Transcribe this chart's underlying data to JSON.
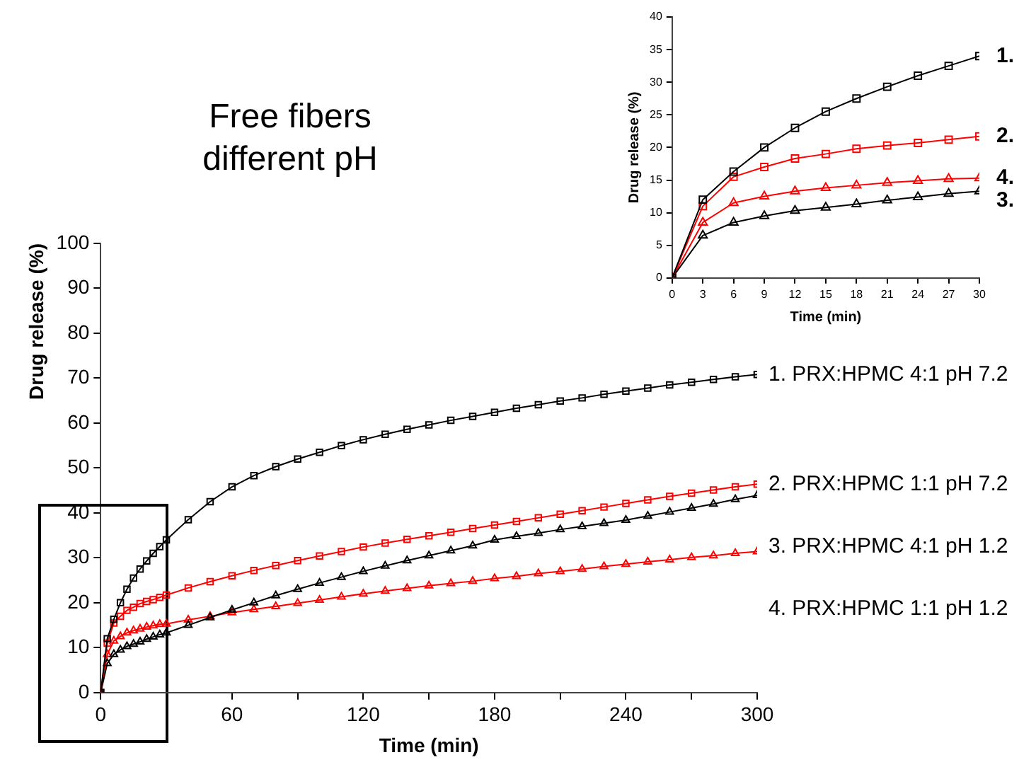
{
  "chart_data": [
    {
      "type": "line",
      "title": "Free fibers different pH",
      "xlabel": "Time (min)",
      "ylabel": "Drug release (%)",
      "x": [
        0,
        3,
        6,
        9,
        12,
        15,
        18,
        21,
        24,
        27,
        30,
        40,
        50,
        60,
        70,
        80,
        90,
        100,
        110,
        120,
        130,
        140,
        150,
        160,
        170,
        180,
        190,
        200,
        210,
        220,
        230,
        240,
        250,
        260,
        270,
        280,
        290,
        300
      ],
      "series": [
        {
          "name": "1. PRX:HPMC 4:1 pH 7.2",
          "color": "#000000",
          "marker": "square",
          "values": [
            0,
            12,
            16.3,
            20,
            23,
            25.5,
            27.5,
            29.3,
            31,
            32.5,
            34,
            38.5,
            42.5,
            45.8,
            48.3,
            50.3,
            52,
            53.5,
            55,
            56.3,
            57.5,
            58.6,
            59.6,
            60.6,
            61.5,
            62.4,
            63.3,
            64.1,
            64.9,
            65.6,
            66.4,
            67.1,
            67.8,
            68.5,
            69.1,
            69.7,
            70.3,
            70.8
          ]
        },
        {
          "name": "2. PRX:HPMC 1:1 pH 7.2",
          "color": "#ff0000",
          "marker": "square",
          "values": [
            0,
            11,
            15.5,
            17,
            18.3,
            19,
            19.8,
            20.3,
            20.7,
            21.2,
            21.7,
            23.3,
            24.7,
            26,
            27.2,
            28.3,
            29.4,
            30.4,
            31.4,
            32.4,
            33.3,
            34.1,
            34.9,
            35.7,
            36.5,
            37.3,
            38.1,
            38.9,
            39.7,
            40.5,
            41.3,
            42.1,
            42.9,
            43.7,
            44.4,
            45.1,
            45.8,
            46.4
          ]
        },
        {
          "name": "3. PRX:HPMC 4:1 pH 1.2",
          "color": "#000000",
          "marker": "triangle",
          "values": [
            0,
            6.5,
            8.5,
            9.5,
            10.3,
            10.8,
            11.3,
            11.9,
            12.4,
            12.9,
            13.3,
            15,
            16.7,
            18.4,
            20,
            21.6,
            23,
            24.4,
            25.7,
            27,
            28.2,
            29.4,
            30.5,
            31.6,
            32.7,
            34,
            34.8,
            35.5,
            36.3,
            37,
            37.7,
            38.4,
            39.3,
            40.2,
            41.1,
            42,
            43,
            43.9
          ]
        },
        {
          "name": "4. PRX:HPMC 1:1 pH 1.2",
          "color": "#ff0000",
          "marker": "triangle",
          "values": [
            0,
            8.5,
            11.5,
            12.5,
            13.3,
            13.8,
            14.2,
            14.6,
            14.9,
            15.2,
            15.3,
            16.2,
            17,
            17.8,
            18.5,
            19.2,
            19.9,
            20.6,
            21.3,
            22,
            22.6,
            23.2,
            23.8,
            24.3,
            24.8,
            25.4,
            25.9,
            26.5,
            27,
            27.5,
            28.1,
            28.6,
            29.1,
            29.6,
            30.1,
            30.5,
            31,
            31.4
          ]
        }
      ],
      "xlim": [
        0,
        300
      ],
      "xticks": [
        0,
        {
          "value": 30,
          "label": null
        },
        60,
        {
          "value": 90,
          "label": null
        },
        120,
        {
          "value": 150,
          "label": null
        },
        180,
        {
          "value": 210,
          "label": null
        },
        240,
        {
          "value": 270,
          "label": null
        },
        300
      ],
      "ylim": [
        0,
        100
      ],
      "yticks": [
        0,
        10,
        20,
        30,
        40,
        50,
        60,
        70,
        80,
        90,
        100
      ],
      "grid": false,
      "legend": false,
      "ref_lines": [
        {
          "axis": "x",
          "value": 30,
          "color": "#000000"
        }
      ]
    },
    {
      "type": "line",
      "xlabel": "Time (min)",
      "ylabel": "Drug release (%)",
      "x": [
        0,
        3,
        6,
        9,
        12,
        15,
        18,
        21,
        24,
        27,
        30
      ],
      "series": [
        {
          "name": "1.",
          "color": "#000000",
          "marker": "square",
          "values": [
            0,
            12,
            16.3,
            20,
            23,
            25.5,
            27.5,
            29.3,
            31,
            32.5,
            34
          ]
        },
        {
          "name": "2.",
          "color": "#ff0000",
          "marker": "square",
          "values": [
            0,
            11,
            15.5,
            17,
            18.3,
            19,
            19.8,
            20.3,
            20.7,
            21.2,
            21.7
          ]
        },
        {
          "name": "3.",
          "color": "#000000",
          "marker": "triangle",
          "values": [
            0,
            6.5,
            8.5,
            9.5,
            10.3,
            10.8,
            11.3,
            11.9,
            12.4,
            12.9,
            13.3
          ]
        },
        {
          "name": "4.",
          "color": "#ff0000",
          "marker": "triangle",
          "values": [
            0,
            8.5,
            11.5,
            12.5,
            13.3,
            13.8,
            14.2,
            14.6,
            14.9,
            15.2,
            15.3
          ]
        }
      ],
      "xlim": [
        0,
        30
      ],
      "xticks": [
        0,
        3,
        6,
        9,
        12,
        15,
        18,
        21,
        24,
        27,
        30
      ],
      "ylim": [
        0,
        40
      ],
      "yticks": [
        0,
        5,
        10,
        15,
        20,
        25,
        30,
        35,
        40
      ],
      "grid": false,
      "legend": false
    }
  ]
}
